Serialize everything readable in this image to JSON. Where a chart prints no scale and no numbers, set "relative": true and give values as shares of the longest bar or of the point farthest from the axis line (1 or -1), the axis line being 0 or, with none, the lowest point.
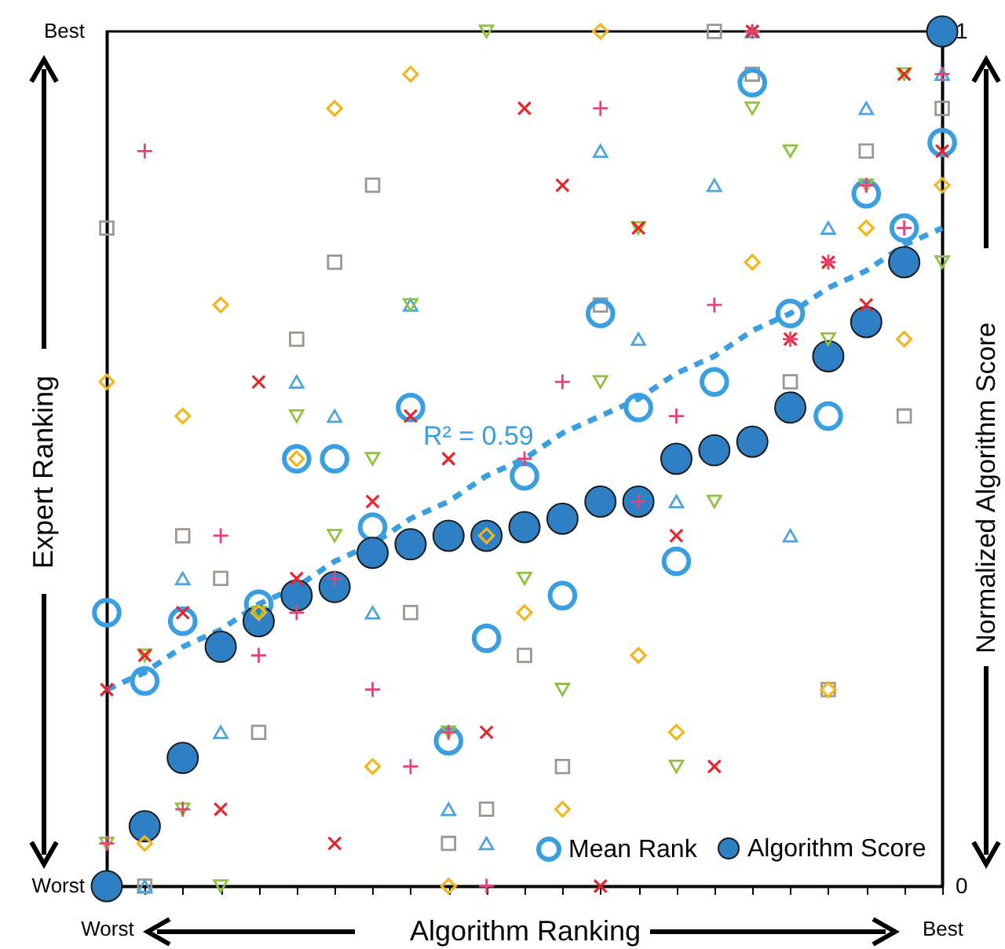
{
  "chart_data": {
    "type": "scatter",
    "relative": true,
    "xlabel": "Algorithm Ranking",
    "ylabel": "Expert Ranking",
    "y2label": "Normalized Algorithm Score",
    "legend": "bottom right",
    "categories": [
      "Worst",
      null,
      null,
      null,
      null,
      null,
      null,
      null,
      null,
      null,
      null,
      null,
      null,
      null,
      null,
      null,
      null,
      null,
      null,
      null,
      null,
      null,
      "Best"
    ],
    "y2lim": [
      0,
      1
    ],
    "y2ticks": [
      0,
      1
    ],
    "annotations": [
      "Best",
      "Worst"
    ],
    "series": [
      {
        "marker": "square",
        "color": "#9e9690",
        "values": [
          0.77,
          0,
          0.41,
          0.36,
          0.18,
          0.64,
          0.73,
          0.82,
          0.32,
          0.05,
          0.09,
          0.27,
          0.14,
          0.68,
          null,
          null,
          1,
          0.95,
          0.59,
          0.23,
          0.86,
          0.55,
          0.91
        ]
      },
      {
        "marker": "triangle",
        "color": "#4ea3dc",
        "values": [
          null,
          0,
          0.36,
          0.18,
          null,
          0.59,
          0.55,
          0.32,
          0.68,
          0.09,
          0.05,
          null,
          null,
          0.86,
          0.64,
          0.45,
          0.82,
          1,
          0.41,
          0.77,
          0.91,
          null,
          0.95
        ]
      },
      {
        "marker": "triangle-down",
        "color": "#8cc43c",
        "values": [
          0.05,
          0.27,
          0.09,
          0,
          0.32,
          0.55,
          0.41,
          0.5,
          0.68,
          0.18,
          1,
          0.36,
          0.23,
          0.59,
          0.77,
          0.14,
          0.45,
          0.91,
          0.86,
          0.64,
          0.82,
          0.95,
          0.73
        ]
      },
      {
        "marker": "diamond",
        "color": "#f2b51e",
        "values": [
          0.59,
          0.05,
          0.55,
          0.68,
          0.32,
          0.5,
          0.91,
          0.14,
          0.95,
          0,
          0.41,
          0.32,
          0.09,
          1,
          0.27,
          0.18,
          null,
          0.73,
          null,
          0.23,
          0.77,
          0.64,
          0.82
        ]
      },
      {
        "marker": "x",
        "color": "#e6262a",
        "values": [
          0.23,
          0.27,
          0.32,
          0.09,
          0.59,
          0.36,
          0.05,
          0.45,
          0.55,
          0.5,
          0.18,
          0.91,
          0.82,
          0,
          0.77,
          0.41,
          0.14,
          1,
          0.64,
          0.73,
          0.68,
          0.95,
          0.86
        ]
      },
      {
        "marker": "cross",
        "color": "#e8417a",
        "values": [
          0.05,
          0.86,
          0.09,
          0.41,
          0.27,
          0.32,
          0.36,
          0.23,
          0.14,
          0.18,
          0,
          0.5,
          0.59,
          0.91,
          0.45,
          0.55,
          0.68,
          1,
          0.64,
          0.73,
          0.82,
          0.77,
          0.95
        ]
      },
      {
        "name": "Algorithm Score",
        "marker": "circle",
        "color": "#2f7fc4",
        "axis": "y2",
        "values": [
          0,
          0.07,
          0.15,
          0.28,
          0.31,
          0.34,
          0.35,
          0.39,
          0.4,
          0.41,
          0.41,
          0.42,
          0.43,
          0.45,
          0.45,
          0.5,
          0.51,
          0.52,
          0.56,
          0.62,
          0.66,
          0.73,
          1
        ]
      },
      {
        "name": "R² = 0.59",
        "type": "line",
        "line_style": "dashed",
        "color": "#3a9fe0",
        "values": [
          0.23,
          0.25,
          0.28,
          0.3,
          0.33,
          0.35,
          0.38,
          0.4,
          0.43,
          0.45,
          0.48,
          0.5,
          0.53,
          0.55,
          0.57,
          0.6,
          0.62,
          0.65,
          0.67,
          0.7,
          0.72,
          0.75,
          0.77
        ]
      },
      {
        "name": "Mean Rank",
        "marker": "circle",
        "color": "#3a9fe0",
        "values": [
          0.32,
          0.24,
          0.31,
          null,
          0.33,
          0.5,
          0.5,
          0.42,
          0.56,
          0.17,
          0.29,
          0.48,
          0.34,
          0.67,
          0.56,
          0.38,
          0.59,
          0.94,
          0.67,
          0.55,
          0.81,
          0.77,
          0.87
        ]
      }
    ]
  }
}
